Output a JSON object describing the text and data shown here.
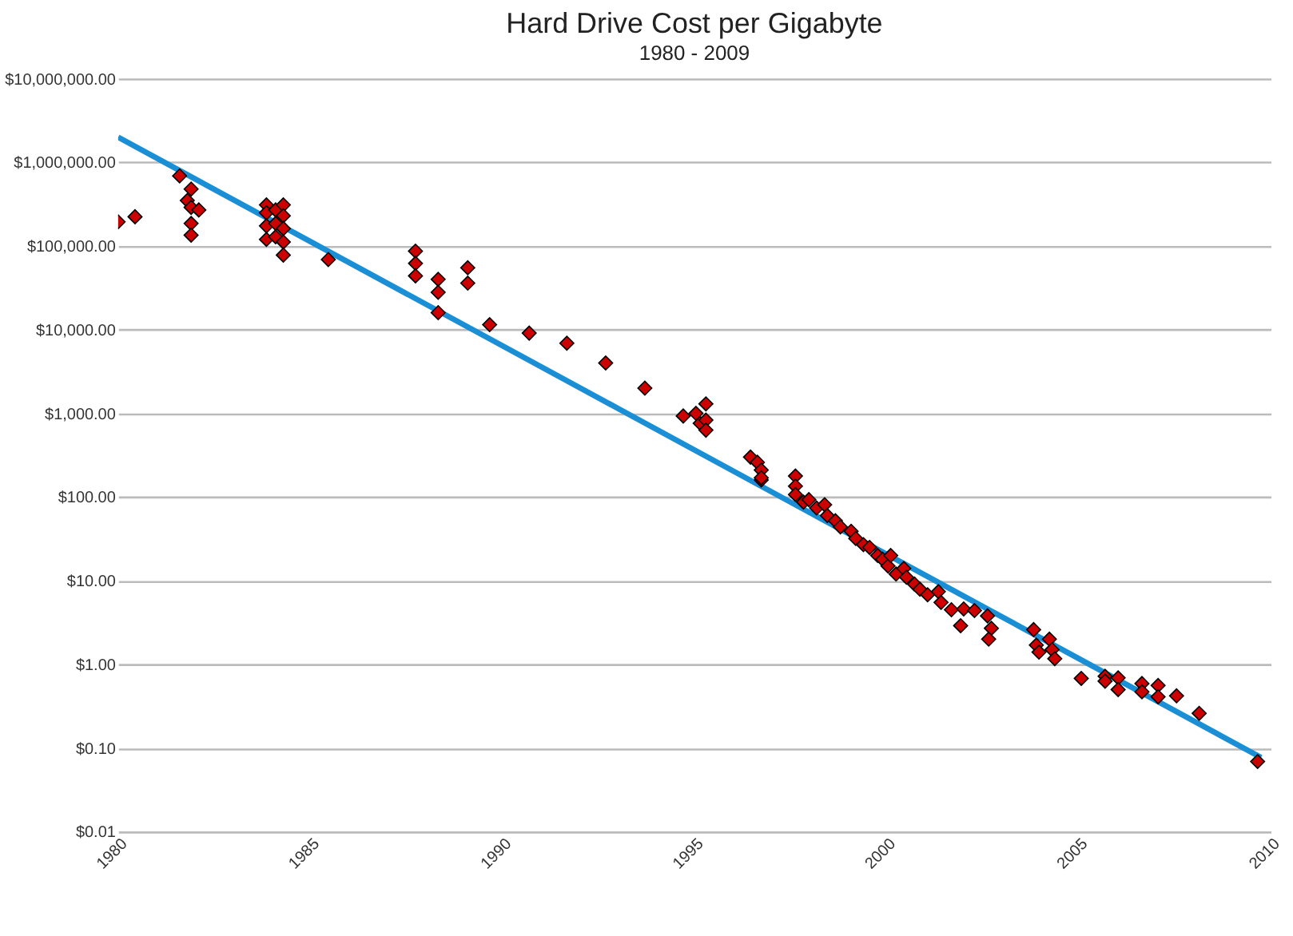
{
  "chart_data": {
    "type": "scatter",
    "title": "Hard Drive Cost per Gigabyte",
    "subtitle": "1980 - 2009",
    "log": "y",
    "grid": "y",
    "marker": "diamond",
    "xlim": [
      1980,
      2010
    ],
    "xticks": [
      1980,
      1985,
      1990,
      1995,
      2000,
      2005,
      2010
    ],
    "ylim": [
      0.01,
      10000000
    ],
    "yticks": [
      {
        "value": 0.01,
        "label": "$0.01"
      },
      {
        "value": 0.1,
        "label": "$0.10"
      },
      {
        "value": 1,
        "label": "$1.00"
      },
      {
        "value": 10,
        "label": "$10.00"
      },
      {
        "value": 100,
        "label": "$100.00"
      },
      {
        "value": 1000,
        "label": "$1,000.00"
      },
      {
        "value": 10000,
        "label": "$10,000.00"
      },
      {
        "value": 100000,
        "label": "$100,000.00"
      },
      {
        "value": 1000000,
        "label": "$1,000,000.00"
      },
      {
        "value": 10000000,
        "label": "$10,000,000.00"
      }
    ],
    "series": [
      {
        "type": "line",
        "marker": "none",
        "color": "#1a8fd6",
        "x": [
          1980,
          2009.75
        ],
        "values": [
          2000000,
          0.077
        ]
      },
      {
        "color": "#cc0000",
        "x": [
          1980,
          1980.44,
          1981.6,
          1981.9,
          1981.8,
          1981.9,
          1982.1,
          1981.9,
          1981.9,
          1983.86,
          1983.86,
          1983.86,
          1983.86,
          1984.1,
          1984.1,
          1984.1,
          1984.3,
          1984.3,
          1984.3,
          1984.3,
          1984.3,
          1985.47,
          1987.74,
          1987.74,
          1987.74,
          1988.33,
          1988.33,
          1988.33,
          1989.1,
          1989.1,
          1989.67,
          1990.7,
          1991.68,
          1992.69,
          1993.71,
          1994.71,
          1995.04,
          1995.15,
          1995.3,
          1995.3,
          1995.3,
          1996.46,
          1996.64,
          1996.74,
          1996.74,
          1996.74,
          1997.63,
          1997.63,
          1997.63,
          1997.84,
          1997.98,
          1998.18,
          1998.39,
          1998.46,
          1998.67,
          1998.8,
          1999.08,
          1999.2,
          1999.4,
          1999.56,
          1999.77,
          1999.9,
          2000.04,
          2000.11,
          2000.25,
          2000.45,
          2000.52,
          2000.73,
          2000.87,
          2001.07,
          2001.35,
          2001.42,
          2001.69,
          2001.93,
          2002.01,
          2002.29,
          2002.63,
          2002.73,
          2002.66,
          2003.83,
          2003.9,
          2003.97,
          2004.24,
          2004.31,
          2004.38,
          2005.07,
          2005.69,
          2005.69,
          2006.03,
          2006.03,
          2006.65,
          2006.65,
          2007.07,
          2007.07,
          2007.55,
          2008.14,
          2009.66
        ],
        "values": [
          195000,
          224000,
          690000,
          480000,
          350000,
          290000,
          270000,
          186000,
          135000,
          310000,
          250000,
          174000,
          120000,
          270000,
          186000,
          129000,
          310000,
          230000,
          162000,
          112000,
          78000,
          69000,
          87000,
          62000,
          44000,
          40000,
          28000,
          16000,
          55000,
          36000,
          11500,
          9100,
          6900,
          4000,
          2000,
          930,
          1000,
          760,
          1300,
          830,
          630,
          300,
          260,
          210,
          160,
          170,
          178,
          135,
          107,
          87,
          93,
          74,
          81,
          60,
          52,
          44,
          39,
          32,
          27,
          25,
          20,
          18,
          15,
          20,
          12,
          14,
          11,
          9.1,
          7.9,
          6.8,
          7.4,
          5.5,
          4.5,
          2.9,
          4.6,
          4.4,
          3.8,
          2.7,
          2.0,
          2.6,
          1.7,
          1.4,
          2.0,
          1.5,
          1.17,
          0.68,
          0.72,
          0.63,
          0.69,
          0.5,
          0.59,
          0.47,
          0.56,
          0.41,
          0.42,
          0.26,
          0.069
        ]
      }
    ]
  }
}
